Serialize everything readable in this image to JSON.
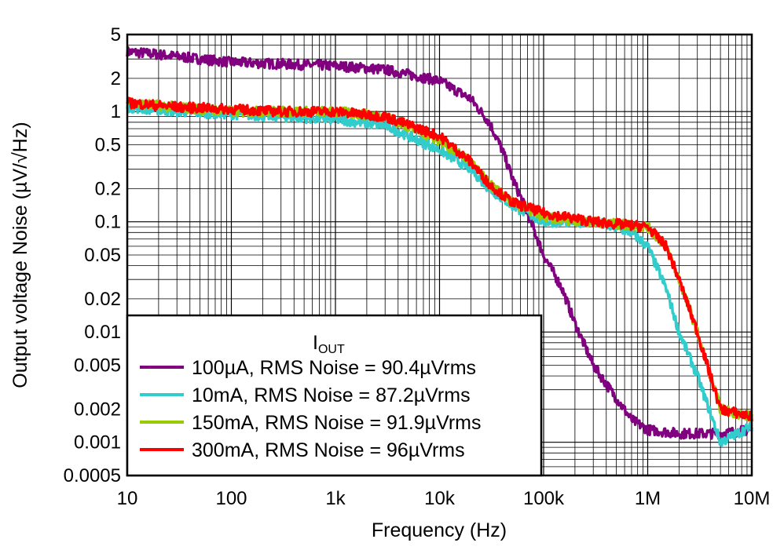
{
  "chart_data": {
    "type": "line",
    "xscale": "log",
    "yscale": "log",
    "xlim": [
      10,
      10000000
    ],
    "ylim": [
      0.0005,
      5
    ],
    "xlabel": "Frequency (Hz)",
    "ylabel": "Output voltage Noise (µV/√Hz)",
    "x_tick_labels": [
      "10",
      "100",
      "1k",
      "10k",
      "100k",
      "1M",
      "10M"
    ],
    "x_tick_values": [
      10,
      100,
      1000,
      10000,
      100000,
      1000000,
      10000000
    ],
    "y_tick_labels": [
      "5",
      "2",
      "1",
      "0.5",
      "0.2",
      "0.1",
      "0.05",
      "0.02",
      "0.01",
      "0.005",
      "0.002",
      "0.001",
      "0.0005"
    ],
    "y_tick_values": [
      5,
      2,
      1,
      0.5,
      0.2,
      0.1,
      0.05,
      0.02,
      0.01,
      0.005,
      0.002,
      0.001,
      0.0005
    ],
    "grid": true,
    "legend": {
      "title_main": "I",
      "title_sub": "OUT",
      "placement": "lower-left"
    },
    "series": [
      {
        "name": "100µA, RMS Noise = 90.4µVrms",
        "color": "#800080",
        "x": [
          10,
          20,
          50,
          100,
          300,
          1000,
          3000,
          10000,
          20000,
          30000,
          40000,
          50000,
          70000,
          100000,
          150000,
          200000,
          300000,
          500000,
          700000,
          1000000,
          2000000,
          5000000,
          10000000
        ],
        "y": [
          3.5,
          3.3,
          3.0,
          2.8,
          2.7,
          2.6,
          2.4,
          1.9,
          1.3,
          0.8,
          0.45,
          0.25,
          0.12,
          0.05,
          0.025,
          0.012,
          0.005,
          0.0025,
          0.0016,
          0.0013,
          0.0012,
          0.0012,
          0.0013
        ]
      },
      {
        "name": "10mA, RMS Noise = 87.2µVrms",
        "color": "#33CCCC",
        "x": [
          10,
          30,
          100,
          300,
          1000,
          3000,
          10000,
          20000,
          30000,
          50000,
          100000,
          300000,
          700000,
          1000000,
          1500000,
          2000000,
          3000000,
          5000000,
          10000000
        ],
        "y": [
          1.1,
          1.0,
          0.95,
          0.9,
          0.85,
          0.75,
          0.45,
          0.3,
          0.2,
          0.14,
          0.1,
          0.1,
          0.08,
          0.06,
          0.025,
          0.01,
          0.004,
          0.001,
          0.0014
        ]
      },
      {
        "name": "150mA, RMS Noise = 91.9µVrms",
        "color": "#99CC00",
        "x": [
          10,
          30,
          100,
          300,
          1000,
          3000,
          10000,
          20000,
          30000,
          50000,
          100000,
          300000,
          1000000,
          1500000,
          2000000,
          3000000,
          5000000,
          10000000
        ],
        "y": [
          1.2,
          1.1,
          1.0,
          1.0,
          1.0,
          0.9,
          0.55,
          0.35,
          0.22,
          0.15,
          0.11,
          0.1,
          0.09,
          0.06,
          0.03,
          0.01,
          0.002,
          0.0017
        ]
      },
      {
        "name": "300mA, RMS Noise = 96µVrms",
        "color": "#FF0000",
        "x": [
          10,
          30,
          100,
          300,
          1000,
          3000,
          10000,
          20000,
          30000,
          50000,
          100000,
          300000,
          1000000,
          1500000,
          2000000,
          3000000,
          5000000,
          10000000
        ],
        "y": [
          1.2,
          1.1,
          1.05,
          1.0,
          1.0,
          0.9,
          0.6,
          0.35,
          0.22,
          0.15,
          0.12,
          0.1,
          0.09,
          0.06,
          0.03,
          0.01,
          0.002,
          0.0017
        ]
      }
    ]
  }
}
